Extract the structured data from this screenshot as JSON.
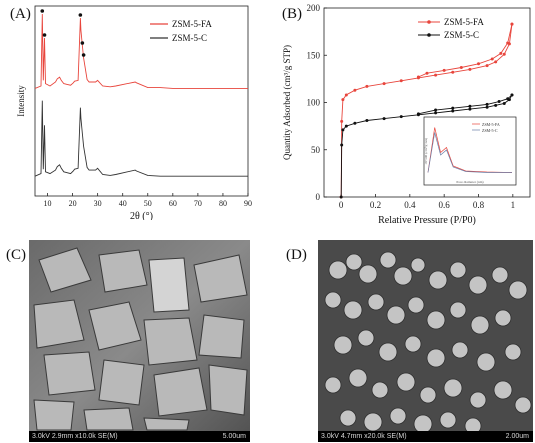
{
  "panels": {
    "a": "(A)",
    "b": "(B)",
    "c": "(C)",
    "d": "(D)"
  },
  "chart_data": [
    {
      "type": "line",
      "panel": "(A)",
      "xlabel": "2θ (°)",
      "ylabel": "Intensity",
      "xlim": [
        5,
        90
      ],
      "xticks": [
        10,
        20,
        30,
        40,
        50,
        60,
        70,
        80,
        90
      ],
      "legend_position": "top-right",
      "series": [
        {
          "name": "ZSM-5-FA",
          "color": "#e8453c",
          "points": [
            [
              5,
              0.02
            ],
            [
              7.4,
              0.05
            ],
            [
              7.9,
              0.95
            ],
            [
              8.3,
              0.12
            ],
            [
              8.8,
              0.65
            ],
            [
              9.2,
              0.08
            ],
            [
              11,
              0.05
            ],
            [
              13.2,
              0.1
            ],
            [
              13.9,
              0.14
            ],
            [
              14.8,
              0.16
            ],
            [
              15.5,
              0.12
            ],
            [
              16.5,
              0.08
            ],
            [
              17.8,
              0.07
            ],
            [
              19.2,
              0.06
            ],
            [
              20.3,
              0.09
            ],
            [
              20.8,
              0.11
            ],
            [
              22.2,
              0.12
            ],
            [
              23.1,
              0.9
            ],
            [
              23.3,
              0.75
            ],
            [
              23.9,
              0.55
            ],
            [
              24.4,
              0.4
            ],
            [
              25.8,
              0.13
            ],
            [
              26.6,
              0.1
            ],
            [
              29.2,
              0.1
            ],
            [
              30.0,
              0.12
            ],
            [
              32,
              0.05
            ],
            [
              35,
              0.04
            ],
            [
              37.2,
              0.05
            ],
            [
              45.0,
              0.1
            ],
            [
              45.5,
              0.09
            ],
            [
              50,
              0.03
            ],
            [
              55,
              0.03
            ],
            [
              60,
              0.02
            ],
            [
              65,
              0.02
            ],
            [
              70,
              0.02
            ],
            [
              80,
              0.02
            ],
            [
              90,
              0.02
            ]
          ],
          "marked_peaks": [
            7.9,
            8.8,
            23.1,
            23.9,
            24.4
          ]
        },
        {
          "name": "ZSM-5-C",
          "color": "#333333",
          "points": [
            [
              5,
              0.02
            ],
            [
              7.4,
              0.05
            ],
            [
              7.9,
              0.88
            ],
            [
              8.3,
              0.1
            ],
            [
              8.8,
              0.6
            ],
            [
              9.2,
              0.07
            ],
            [
              11,
              0.05
            ],
            [
              13.2,
              0.09
            ],
            [
              13.9,
              0.13
            ],
            [
              14.8,
              0.15
            ],
            [
              15.5,
              0.11
            ],
            [
              16.5,
              0.07
            ],
            [
              17.8,
              0.06
            ],
            [
              19.2,
              0.05
            ],
            [
              20.3,
              0.08
            ],
            [
              20.8,
              0.1
            ],
            [
              22.2,
              0.11
            ],
            [
              23.1,
              0.8
            ],
            [
              23.3,
              0.68
            ],
            [
              23.9,
              0.5
            ],
            [
              24.4,
              0.36
            ],
            [
              25.8,
              0.12
            ],
            [
              26.6,
              0.09
            ],
            [
              29.2,
              0.09
            ],
            [
              30.0,
              0.11
            ],
            [
              32,
              0.04
            ],
            [
              35,
              0.03
            ],
            [
              37.2,
              0.04
            ],
            [
              45.0,
              0.09
            ],
            [
              45.5,
              0.08
            ],
            [
              50,
              0.03
            ],
            [
              55,
              0.02
            ],
            [
              60,
              0.02
            ],
            [
              65,
              0.02
            ],
            [
              70,
              0.02
            ],
            [
              80,
              0.02
            ],
            [
              90,
              0.02
            ]
          ]
        }
      ]
    },
    {
      "type": "line",
      "panel": "(B)",
      "xlabel": "Relative Pressure (P/P0)",
      "ylabel": "Quantity Adsorbed (cm³/g STP)",
      "xlim": [
        -0.1,
        1.1
      ],
      "ylim": [
        0,
        200
      ],
      "xticks": [
        "0",
        "0.2",
        "0.4",
        "0.6",
        "0.8",
        "1"
      ],
      "yticks": [
        "0",
        "50",
        "100",
        "150",
        "200"
      ],
      "legend_position": "top-right",
      "series": [
        {
          "name": "ZSM-5-FA",
          "color": "#e8453c",
          "adsorption": [
            [
              0.0,
              0
            ],
            [
              0.003,
              80
            ],
            [
              0.01,
              103
            ],
            [
              0.03,
              108
            ],
            [
              0.08,
              113
            ],
            [
              0.15,
              117
            ],
            [
              0.25,
              120
            ],
            [
              0.35,
              123
            ],
            [
              0.45,
              126
            ],
            [
              0.55,
              129
            ],
            [
              0.65,
              132
            ],
            [
              0.75,
              135
            ],
            [
              0.85,
              139
            ],
            [
              0.9,
              143
            ],
            [
              0.95,
              151
            ],
            [
              0.98,
              162
            ],
            [
              0.995,
              183
            ]
          ],
          "desorption": [
            [
              0.995,
              183
            ],
            [
              0.97,
              163
            ],
            [
              0.93,
              152
            ],
            [
              0.88,
              146
            ],
            [
              0.8,
              141
            ],
            [
              0.7,
              137
            ],
            [
              0.6,
              134
            ],
            [
              0.5,
              131
            ],
            [
              0.45,
              127
            ]
          ]
        },
        {
          "name": "ZSM-5-C",
          "color": "#111111",
          "adsorption": [
            [
              0.0,
              0
            ],
            [
              0.003,
              55
            ],
            [
              0.01,
              71
            ],
            [
              0.03,
              75
            ],
            [
              0.08,
              78
            ],
            [
              0.15,
              81
            ],
            [
              0.25,
              83
            ],
            [
              0.35,
              85
            ],
            [
              0.45,
              87
            ],
            [
              0.55,
              89
            ],
            [
              0.65,
              91
            ],
            [
              0.75,
              93
            ],
            [
              0.85,
              95
            ],
            [
              0.9,
              97
            ],
            [
              0.95,
              99
            ],
            [
              0.98,
              103
            ],
            [
              0.995,
              108
            ]
          ],
          "desorption": [
            [
              0.995,
              108
            ],
            [
              0.97,
              104
            ],
            [
              0.92,
              101
            ],
            [
              0.85,
              98
            ],
            [
              0.75,
              96
            ],
            [
              0.65,
              94
            ],
            [
              0.55,
              92
            ],
            [
              0.45,
              88
            ]
          ]
        }
      ],
      "inset": {
        "xlabel": "Pore diameter (nm)",
        "ylabel": "dV/dD (cm³/g·nm)",
        "legend": [
          "ZSM-5-FA",
          "ZSM-5-C"
        ],
        "series": [
          {
            "name": "ZSM-5-FA",
            "color": "#e8453c",
            "points": [
              [
                0,
                0.05
              ],
              [
                0.08,
                0.95
              ],
              [
                0.15,
                0.45
              ],
              [
                0.22,
                0.55
              ],
              [
                0.3,
                0.18
              ],
              [
                0.45,
                0.08
              ],
              [
                0.7,
                0.06
              ],
              [
                1,
                0.05
              ]
            ]
          },
          {
            "name": "ZSM-5-C",
            "color": "#6a7fa8",
            "points": [
              [
                0,
                0.05
              ],
              [
                0.08,
                0.85
              ],
              [
                0.15,
                0.4
              ],
              [
                0.22,
                0.5
              ],
              [
                0.3,
                0.16
              ],
              [
                0.45,
                0.07
              ],
              [
                0.7,
                0.05
              ],
              [
                1,
                0.05
              ]
            ]
          }
        ]
      }
    }
  ],
  "sem": {
    "c": {
      "left": "3.0kV 2.9mm x10.0k SE(M)",
      "right": "5.00um"
    },
    "d": {
      "left": "3.0kV 4.7mm x20.0k SE(M)",
      "right": "2.00um"
    }
  }
}
